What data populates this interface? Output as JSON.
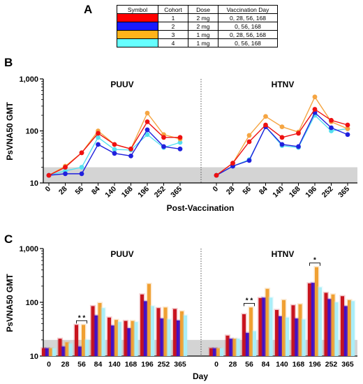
{
  "panels": {
    "a": "A",
    "b": "B",
    "c": "C"
  },
  "table": {
    "headers": [
      "Symbol",
      "Cohort",
      "Dose",
      "Vaccination Day"
    ],
    "rows": [
      {
        "color": "#ff0000",
        "cohort": "1",
        "dose": "2 mg",
        "days": "0, 28, 56, 168"
      },
      {
        "color": "#1a1aff",
        "cohort": "2",
        "dose": "2 mg",
        "days": "0, 56, 168"
      },
      {
        "color": "#ffb31a",
        "cohort": "3",
        "dose": "1 mg",
        "days": "0, 28, 56, 168"
      },
      {
        "color": "#66ffff",
        "cohort": "4",
        "dose": "1 mg",
        "days": "0, 56, 168"
      }
    ]
  },
  "chart_data": [
    {
      "type": "line",
      "panel": "B",
      "ylabel": "PsVNA50 GMT",
      "xlabel": "Post-Vaccination",
      "yscale": "log",
      "ylim": [
        10,
        1000
      ],
      "yticks": [
        "10",
        "100",
        "1,000"
      ],
      "shaded_below": 20,
      "categories": [
        "0",
        "28",
        "56",
        "84",
        "140",
        "168",
        "196",
        "252",
        "365"
      ],
      "groups": [
        {
          "name": "PUUV",
          "series": [
            {
              "cohort": "1",
              "color": "#ee1111",
              "values": [
                14,
                20,
                38,
                90,
                55,
                45,
                150,
                75,
                75
              ]
            },
            {
              "cohort": "2",
              "color": "#2020dd",
              "values": [
                14,
                15,
                15,
                55,
                37,
                33,
                105,
                50,
                45
              ]
            },
            {
              "cohort": "3",
              "color": "#f5a542",
              "values": [
                14,
                21,
                38,
                100,
                55,
                45,
                220,
                85,
                70
              ]
            },
            {
              "cohort": "4",
              "color": "#55e0f0",
              "values": [
                14,
                17,
                20,
                75,
                44,
                43,
                85,
                48,
                60
              ]
            }
          ]
        },
        {
          "name": "HTNV",
          "series": [
            {
              "cohort": "1",
              "color": "#ee1111",
              "values": [
                14,
                24,
                62,
                130,
                75,
                90,
                260,
                160,
                130
              ]
            },
            {
              "cohort": "2",
              "color": "#2020dd",
              "values": [
                14,
                21,
                27,
                120,
                55,
                50,
                225,
                115,
                85
              ]
            },
            {
              "cohort": "3",
              "color": "#f5a542",
              "values": [
                14,
                24,
                82,
                190,
                120,
                95,
                450,
                150,
                110
              ]
            },
            {
              "cohort": "4",
              "color": "#55e0f0",
              "values": [
                14,
                21,
                28,
                120,
                52,
                48,
                200,
                100,
                110
              ]
            }
          ]
        }
      ]
    },
    {
      "type": "bar",
      "panel": "C",
      "ylabel": "PsVNA50 GMT",
      "xlabel": "Day",
      "yscale": "log",
      "ylim": [
        10,
        1000
      ],
      "yticks": [
        "10",
        "100",
        "1,000"
      ],
      "shaded_below": 20,
      "categories": [
        "0",
        "28",
        "56",
        "84",
        "140",
        "168",
        "196",
        "252",
        "365"
      ],
      "annotations": [
        {
          "group": "PUUV",
          "category": "56",
          "label": "* *"
        },
        {
          "group": "HTNV",
          "category": "56",
          "label": "* *"
        },
        {
          "group": "HTNV",
          "category": "196",
          "label": "*"
        }
      ],
      "groups": [
        {
          "name": "PUUV",
          "series": [
            {
              "cohort": "1",
              "color": "#c8141e",
              "values": [
                14,
                21,
                38,
                85,
                52,
                45,
                140,
                78,
                75
              ]
            },
            {
              "cohort": "2",
              "color": "#4010c8",
              "values": [
                14,
                15,
                15,
                57,
                37,
                33,
                105,
                50,
                46
              ]
            },
            {
              "cohort": "3",
              "color": "#f0a032",
              "values": [
                14,
                18,
                38,
                97,
                47,
                45,
                220,
                80,
                68
              ]
            },
            {
              "cohort": "4",
              "color": "#aaeef8",
              "values": [
                14,
                17,
                20,
                78,
                43,
                43,
                85,
                48,
                57
              ]
            }
          ]
        },
        {
          "name": "HTNV",
          "series": [
            {
              "cohort": "1",
              "color": "#c8141e",
              "values": [
                14,
                24,
                60,
                120,
                72,
                88,
                225,
                150,
                130
              ]
            },
            {
              "cohort": "2",
              "color": "#4010c8",
              "values": [
                14,
                21,
                27,
                122,
                55,
                50,
                230,
                115,
                85
              ]
            },
            {
              "cohort": "3",
              "color": "#f0a032",
              "values": [
                14,
                21,
                80,
                178,
                110,
                92,
                450,
                140,
                110
              ]
            },
            {
              "cohort": "4",
              "color": "#aaeef8",
              "values": [
                14,
                21,
                29,
                122,
                52,
                48,
                190,
                100,
                105
              ]
            }
          ]
        }
      ]
    }
  ]
}
